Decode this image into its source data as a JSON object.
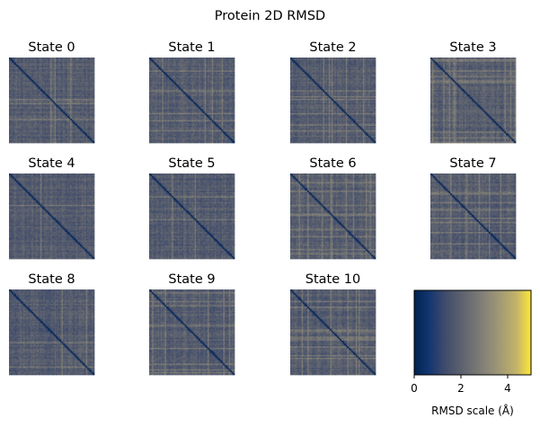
{
  "chart_data": {
    "type": "heatmap",
    "title": "Protein 2D RMSD",
    "panels": [
      {
        "label": "State 0",
        "seed": 11
      },
      {
        "label": "State 1",
        "seed": 23
      },
      {
        "label": "State 2",
        "seed": 37
      },
      {
        "label": "State 3",
        "seed": 41
      },
      {
        "label": "State 4",
        "seed": 53
      },
      {
        "label": "State 5",
        "seed": 67
      },
      {
        "label": "State 6",
        "seed": 71
      },
      {
        "label": "State 7",
        "seed": 83
      },
      {
        "label": "State 8",
        "seed": 97
      },
      {
        "label": "State 9",
        "seed": 101
      },
      {
        "label": "State 10",
        "seed": 113
      }
    ],
    "colormap": "cividis",
    "matrix_size": 60,
    "diagonal_value": 0,
    "typical_offdiagonal_range": [
      1.2,
      3.2
    ],
    "colorbar": {
      "label": "RMSD scale (Å)",
      "range": [
        0,
        5
      ],
      "ticks": [
        0,
        2,
        4
      ]
    },
    "grid": false
  }
}
